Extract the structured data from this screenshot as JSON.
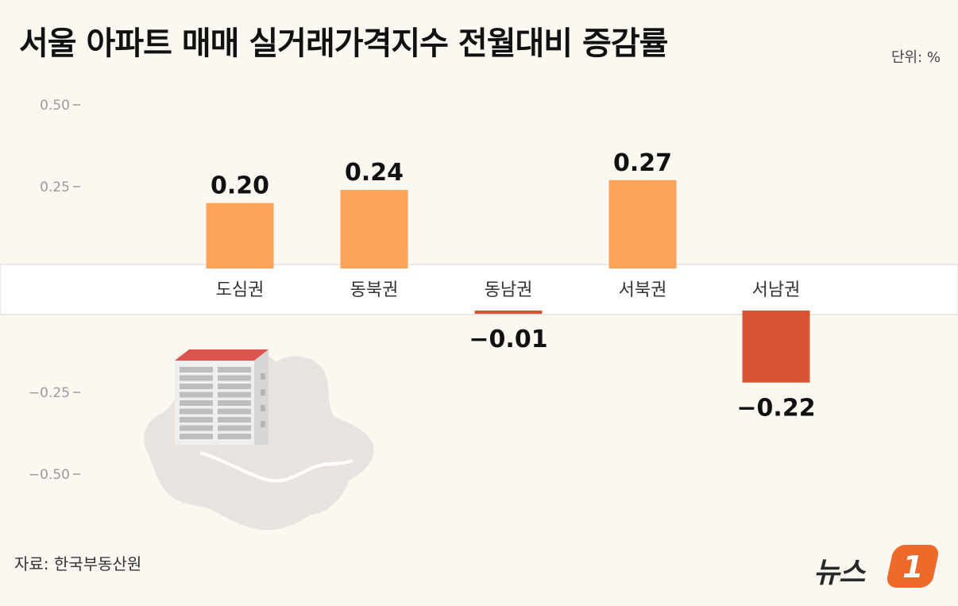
{
  "title": "서울 아파트 매매 실거래가격지수 전월대비 증감률",
  "unit": "단위: %",
  "source": "자료: 한국부동산원",
  "logo": {
    "text": "뉴스",
    "mark": "1"
  },
  "colors": {
    "positive": "#fba35b",
    "negative": "#d75434",
    "band": "#ffffff",
    "map": "#e9e3df"
  },
  "chart_data": {
    "type": "bar",
    "categories": [
      "도심권",
      "동북권",
      "동남권",
      "서북권",
      "서남권"
    ],
    "values": [
      0.2,
      0.24,
      -0.01,
      0.27,
      -0.22
    ],
    "value_labels": [
      "0.20",
      "0.24",
      "−0.01",
      "0.27",
      "−0.22"
    ],
    "yticks": [
      0.5,
      0.25,
      -0.25,
      -0.5
    ],
    "ytick_labels": [
      "0.50",
      "0.25",
      "−0.25",
      "−0.50"
    ],
    "ylim": [
      -0.5,
      0.5
    ],
    "ylabel": "",
    "xlabel": ""
  }
}
